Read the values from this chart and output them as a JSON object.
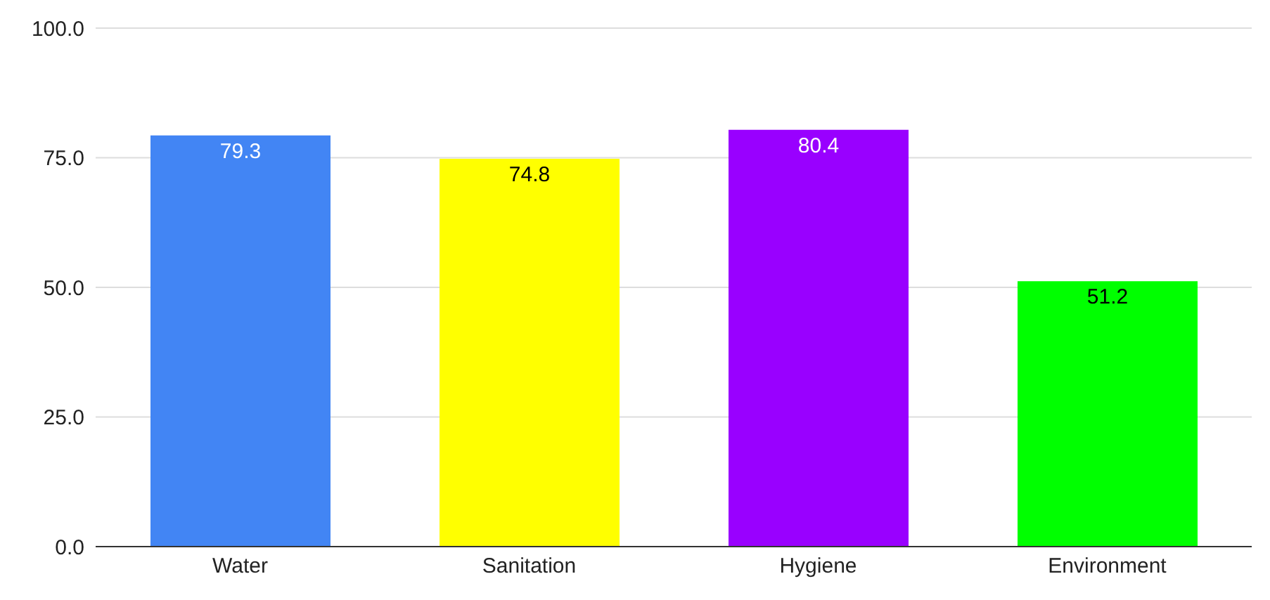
{
  "chart_data": {
    "type": "bar",
    "categories": [
      "Water",
      "Sanitation",
      "Hygiene",
      "Environment"
    ],
    "values": [
      79.3,
      74.8,
      80.4,
      51.2
    ],
    "colors": [
      "#4285f4",
      "#ffff00",
      "#9900ff",
      "#00ff00"
    ],
    "ylim": [
      0,
      100
    ],
    "yticks": [
      {
        "value": 0,
        "label": "0.0"
      },
      {
        "value": 25,
        "label": "25.0"
      },
      {
        "value": 50,
        "label": "50.0"
      },
      {
        "value": 75,
        "label": "75.0"
      },
      {
        "value": 100,
        "label": "100.0"
      }
    ],
    "grid": "y",
    "data_labels": true,
    "legend": false
  }
}
